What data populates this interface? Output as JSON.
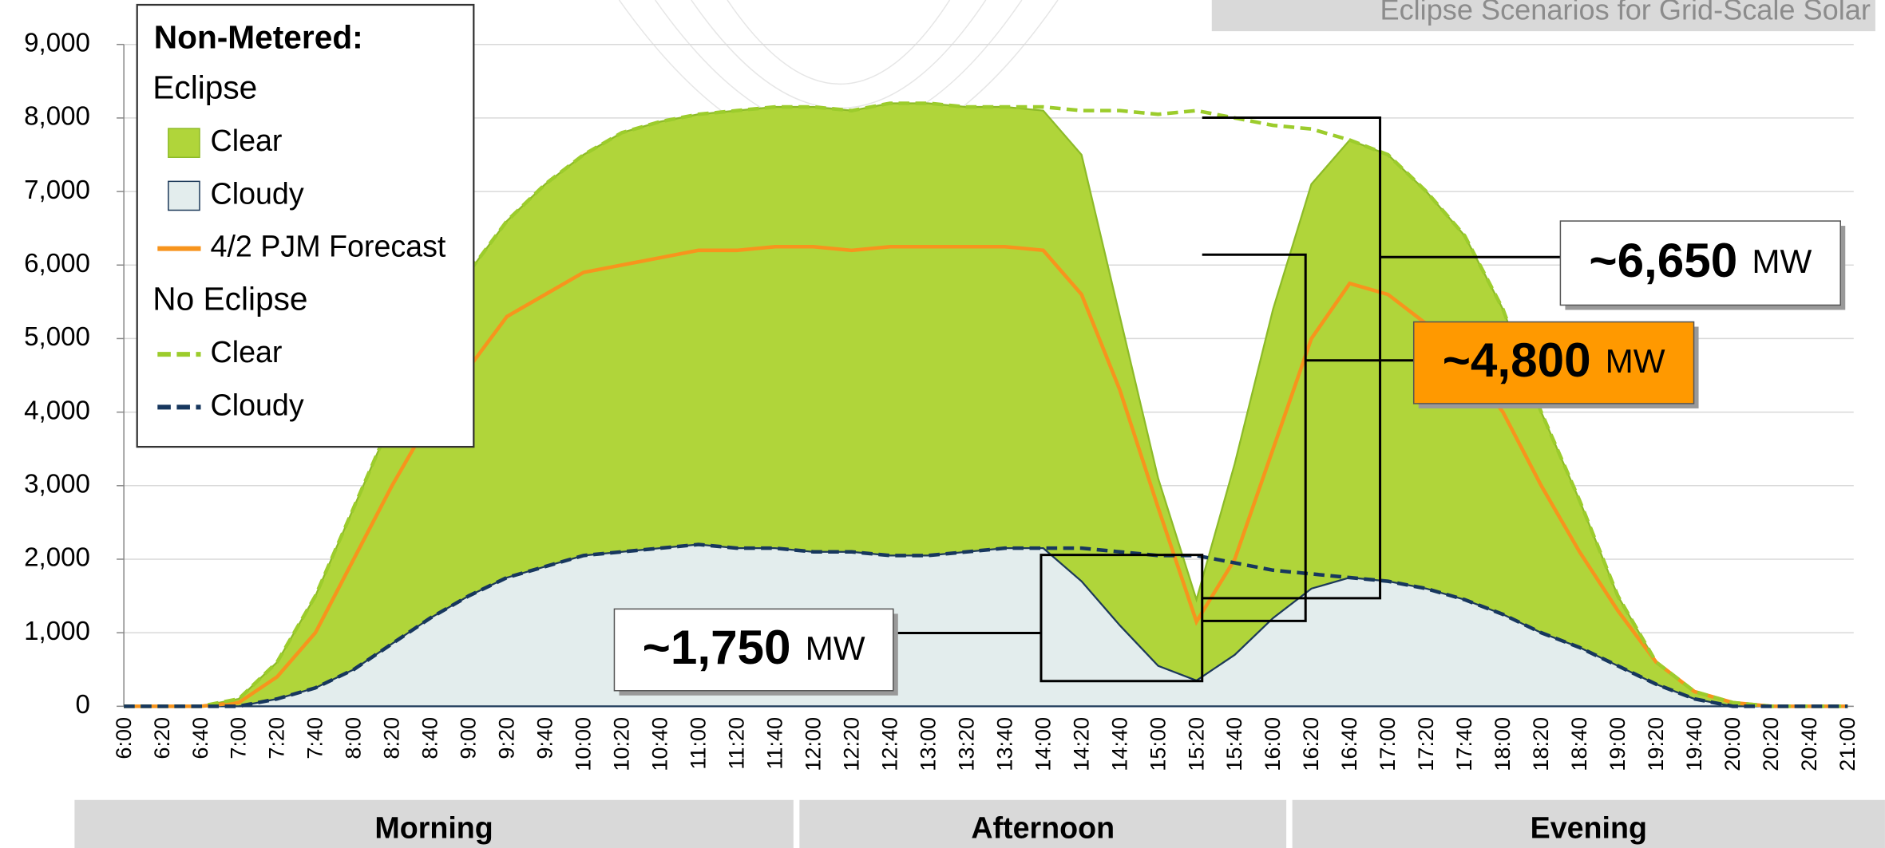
{
  "chart_data": {
    "type": "area",
    "title": "Eclipse Scenarios for Grid-Scale Solar",
    "categories": [
      "6:00",
      "6:20",
      "6:40",
      "7:00",
      "7:20",
      "7:40",
      "8:00",
      "8:20",
      "8:40",
      "9:00",
      "9:20",
      "9:40",
      "10:00",
      "10:20",
      "10:40",
      "11:00",
      "11:20",
      "11:40",
      "12:00",
      "12:20",
      "12:40",
      "13:00",
      "13:20",
      "13:40",
      "14:00",
      "14:20",
      "14:40",
      "15:00",
      "15:20",
      "15:40",
      "16:00",
      "16:20",
      "16:40",
      "17:00",
      "17:20",
      "17:40",
      "18:00",
      "18:20",
      "18:40",
      "19:00",
      "19:20",
      "19:40",
      "20:00",
      "20:20",
      "20:40",
      "21:00"
    ],
    "ylim": [
      0,
      9000
    ],
    "yticks": [
      0,
      {
        "value": 1000,
        "label": "1,000"
      },
      {
        "value": 2000,
        "label": "2,000"
      },
      {
        "value": 3000,
        "label": "3,000"
      },
      {
        "value": 4000,
        "label": "4,000"
      },
      {
        "value": 5000,
        "label": "5,000"
      },
      {
        "value": 6000,
        "label": "6,000"
      },
      {
        "value": 7000,
        "label": "7,000"
      },
      {
        "value": 8000,
        "label": "8,000"
      },
      {
        "value": 9000,
        "label": "9,000"
      }
    ],
    "grid": true,
    "legend": {
      "position": "upper left",
      "title": "Non-Metered:",
      "groups": [
        "Eclipse",
        "No Eclipse"
      ]
    },
    "series": [
      {
        "name": "Clear",
        "group": 0,
        "kind": "area",
        "color": "#b0d53a",
        "values": [
          0,
          0,
          0,
          100,
          600,
          1500,
          2700,
          3900,
          5000,
          5900,
          6600,
          7100,
          7500,
          7800,
          7950,
          8050,
          8100,
          8150,
          8150,
          8100,
          8200,
          8200,
          8150,
          8150,
          8100,
          7500,
          5300,
          3100,
          1450,
          3300,
          5400,
          7100,
          7700,
          7500,
          7000,
          6400,
          5400,
          4000,
          2800,
          1500,
          600,
          200,
          50,
          0,
          0,
          0
        ]
      },
      {
        "name": "Cloudy",
        "group": 0,
        "kind": "area",
        "color": "#e3eded",
        "values": [
          0,
          0,
          0,
          0,
          100,
          250,
          500,
          850,
          1200,
          1500,
          1750,
          1900,
          2050,
          2100,
          2150,
          2200,
          2150,
          2150,
          2100,
          2100,
          2050,
          2050,
          2100,
          2150,
          2150,
          1700,
          1100,
          550,
          350,
          700,
          1200,
          1600,
          1750,
          1700,
          1600,
          1450,
          1250,
          1000,
          800,
          550,
          300,
          100,
          0,
          0,
          0,
          0
        ]
      },
      {
        "name": "4/2 PJM Forecast",
        "group": 0,
        "kind": "line",
        "color": "#f7941d",
        "values": [
          0,
          0,
          0,
          50,
          400,
          1000,
          2000,
          3000,
          3900,
          4600,
          5300,
          5600,
          5900,
          6000,
          6100,
          6200,
          6200,
          6250,
          6250,
          6200,
          6250,
          6250,
          6250,
          6250,
          6200,
          5600,
          4300,
          2700,
          1150,
          2000,
          3500,
          5000,
          5750,
          5600,
          5200,
          4700,
          4000,
          3000,
          2100,
          1300,
          600,
          200,
          50,
          0,
          0,
          0
        ]
      },
      {
        "name": "Clear",
        "group": 1,
        "kind": "dashed",
        "color": "#9ccc2c",
        "values": [
          0,
          0,
          0,
          100,
          600,
          1500,
          2700,
          3900,
          5000,
          5900,
          6600,
          7100,
          7500,
          7800,
          7950,
          8050,
          8100,
          8150,
          8150,
          8100,
          8200,
          8200,
          8150,
          8150,
          8150,
          8100,
          8100,
          8050,
          8100,
          8000,
          7900,
          7850,
          7700,
          7500,
          7000,
          6400,
          5400,
          4000,
          2800,
          1500,
          600,
          200,
          50,
          0,
          0,
          0
        ]
      },
      {
        "name": "Cloudy",
        "group": 1,
        "kind": "dashed",
        "color": "#17375e",
        "values": [
          0,
          0,
          0,
          0,
          100,
          250,
          500,
          850,
          1200,
          1500,
          1750,
          1900,
          2050,
          2100,
          2150,
          2200,
          2150,
          2150,
          2100,
          2100,
          2050,
          2050,
          2100,
          2150,
          2150,
          2150,
          2100,
          2050,
          2050,
          1950,
          1850,
          1800,
          1750,
          1700,
          1600,
          1450,
          1250,
          1000,
          800,
          550,
          300,
          100,
          0,
          0,
          0,
          0
        ]
      }
    ],
    "annotations": [
      {
        "text": "~6,650",
        "unit": "MW",
        "color": "#ffffff"
      },
      {
        "text": "~4,800",
        "unit": "MW",
        "color": "#ff9900"
      },
      {
        "text": "~1,750",
        "unit": "MW",
        "color": "#ffffff"
      }
    ],
    "periods": [
      "Morning",
      "Afternoon",
      "Evening"
    ]
  }
}
